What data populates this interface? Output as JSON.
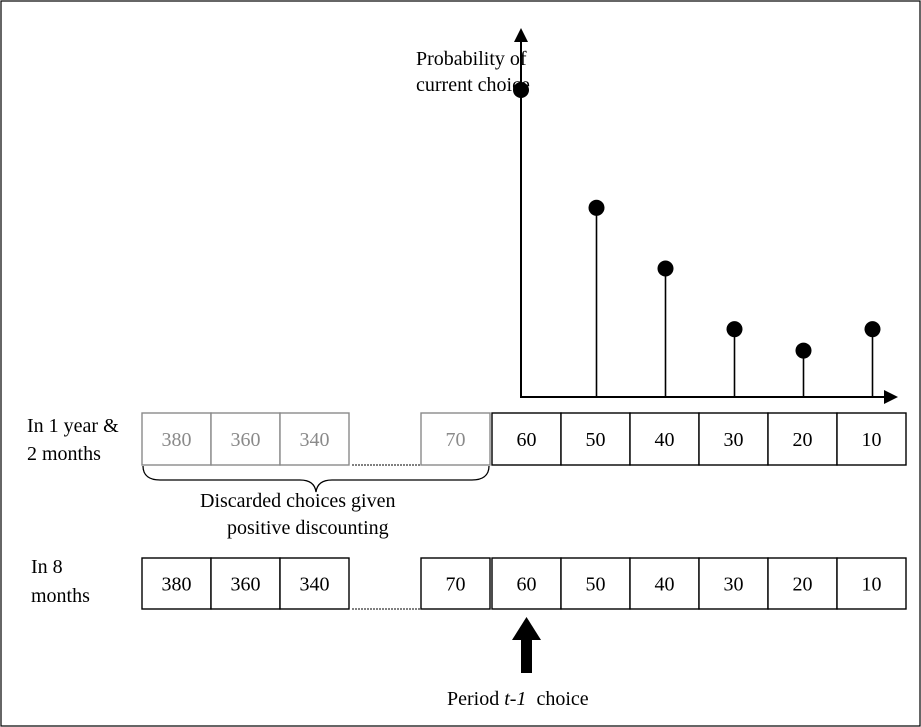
{
  "chart_data": {
    "type": "scatter",
    "title": "",
    "ylabel_line1": "Probability of",
    "ylabel_line2": "current choice",
    "stems": [
      {
        "x": "60",
        "y": 0.86
      },
      {
        "x": "50",
        "y": 0.53
      },
      {
        "x": "40",
        "y": 0.36
      },
      {
        "x": "30",
        "y": 0.19
      },
      {
        "x": "20",
        "y": 0.13
      },
      {
        "x": "10",
        "y": 0.19
      }
    ]
  },
  "row1": {
    "label_line1": "In 1 year &",
    "label_line2": "2 months",
    "discarded_cells": [
      "380",
      "360",
      "340",
      "70"
    ],
    "cells": [
      "60",
      "50",
      "40",
      "30",
      "20",
      "10"
    ]
  },
  "brace": {
    "label_line1": "Discarded choices given",
    "label_line2": "positive discounting"
  },
  "row2": {
    "label_line1": "In 8",
    "label_line2": "months",
    "cells": [
      "380",
      "360",
      "340",
      "70",
      "60",
      "50",
      "40",
      "30",
      "20",
      "10"
    ]
  },
  "arrow_label": {
    "prefix": "Period ",
    "italic": "t-1",
    "suffix": "  choice"
  },
  "colors": {
    "black": "#000000",
    "gray": "#8a8a8a"
  }
}
